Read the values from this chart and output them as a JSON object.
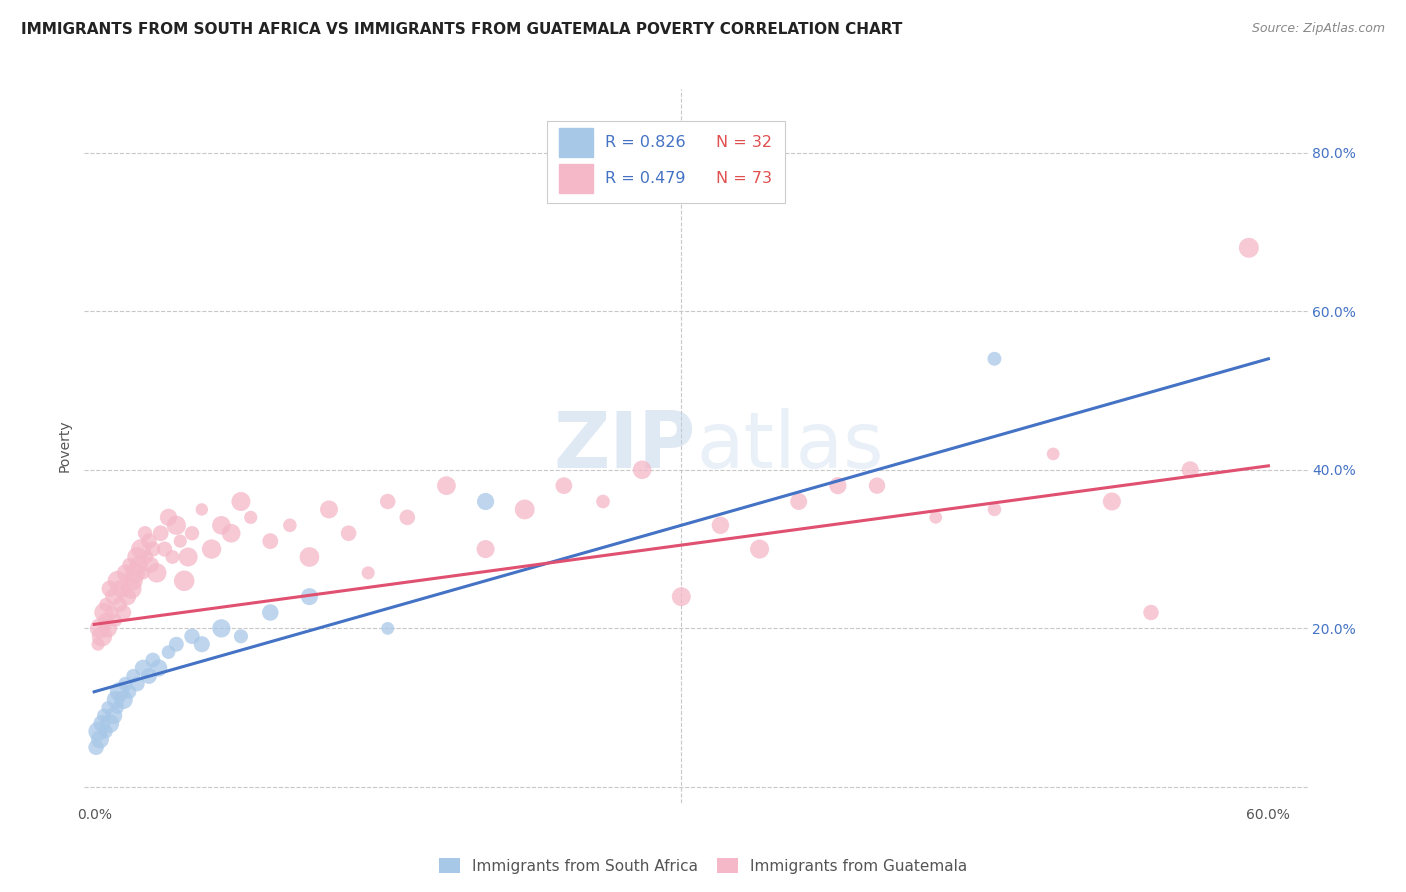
{
  "title": "IMMIGRANTS FROM SOUTH AFRICA VS IMMIGRANTS FROM GUATEMALA POVERTY CORRELATION CHART",
  "source": "Source: ZipAtlas.com",
  "ylabel": "Poverty",
  "xlim": [
    -0.005,
    0.62
  ],
  "ylim": [
    -0.02,
    0.88
  ],
  "xtick_positions": [
    0.0,
    0.3,
    0.6
  ],
  "xticklabels_show": {
    "0.0": "0.0%",
    "0.60": "60.0%"
  },
  "yticks": [
    0.0,
    0.2,
    0.4,
    0.6,
    0.8
  ],
  "yticklabels": [
    "",
    "20.0%",
    "40.0%",
    "60.0%",
    "80.0%"
  ],
  "legend_r1": "R = 0.826",
  "legend_n1": "N = 32",
  "legend_r2": "R = 0.479",
  "legend_n2": "N = 73",
  "color_blue": "#a8c8e8",
  "color_blue_fill": "#a8c8e8",
  "color_pink": "#f4b8c8",
  "color_pink_fill": "#f4b8c8",
  "line_color_blue": "#4472c4",
  "line_color_pink": "#e05070",
  "legend_label1": "Immigrants from South Africa",
  "legend_label2": "Immigrants from Guatemala",
  "background_color": "#ffffff",
  "grid_color": "#c8c8c8",
  "ytick_label_color": "#4472c4",
  "blue_line_x": [
    0.0,
    0.6
  ],
  "blue_line_y": [
    0.12,
    0.54
  ],
  "pink_line_x": [
    0.0,
    0.6
  ],
  "pink_line_y": [
    0.205,
    0.405
  ],
  "south_africa_x": [
    0.001,
    0.002,
    0.003,
    0.004,
    0.005,
    0.006,
    0.007,
    0.008,
    0.01,
    0.011,
    0.012,
    0.013,
    0.015,
    0.016,
    0.018,
    0.02,
    0.022,
    0.025,
    0.028,
    0.03,
    0.033,
    0.038,
    0.042,
    0.05,
    0.055,
    0.065,
    0.075,
    0.09,
    0.11,
    0.15,
    0.2,
    0.46
  ],
  "south_africa_y": [
    0.05,
    0.07,
    0.06,
    0.08,
    0.09,
    0.07,
    0.1,
    0.08,
    0.09,
    0.11,
    0.1,
    0.12,
    0.11,
    0.13,
    0.12,
    0.14,
    0.13,
    0.15,
    0.14,
    0.16,
    0.15,
    0.17,
    0.18,
    0.19,
    0.18,
    0.2,
    0.19,
    0.22,
    0.24,
    0.2,
    0.36,
    0.54
  ],
  "guatemala_x": [
    0.002,
    0.003,
    0.004,
    0.005,
    0.006,
    0.006,
    0.007,
    0.008,
    0.009,
    0.01,
    0.011,
    0.012,
    0.013,
    0.014,
    0.015,
    0.016,
    0.017,
    0.018,
    0.019,
    0.02,
    0.021,
    0.022,
    0.023,
    0.024,
    0.025,
    0.026,
    0.027,
    0.028,
    0.029,
    0.03,
    0.032,
    0.034,
    0.036,
    0.038,
    0.04,
    0.042,
    0.044,
    0.046,
    0.048,
    0.05,
    0.055,
    0.06,
    0.065,
    0.07,
    0.075,
    0.08,
    0.09,
    0.1,
    0.11,
    0.12,
    0.13,
    0.14,
    0.15,
    0.16,
    0.18,
    0.2,
    0.22,
    0.24,
    0.26,
    0.28,
    0.3,
    0.32,
    0.34,
    0.36,
    0.38,
    0.4,
    0.43,
    0.46,
    0.49,
    0.52,
    0.54,
    0.56,
    0.59
  ],
  "guatemala_y": [
    0.18,
    0.2,
    0.19,
    0.22,
    0.21,
    0.23,
    0.2,
    0.25,
    0.22,
    0.24,
    0.21,
    0.26,
    0.23,
    0.25,
    0.22,
    0.27,
    0.24,
    0.28,
    0.25,
    0.26,
    0.27,
    0.29,
    0.28,
    0.3,
    0.27,
    0.32,
    0.29,
    0.31,
    0.28,
    0.3,
    0.27,
    0.32,
    0.3,
    0.34,
    0.29,
    0.33,
    0.31,
    0.26,
    0.29,
    0.32,
    0.35,
    0.3,
    0.33,
    0.32,
    0.36,
    0.34,
    0.31,
    0.33,
    0.29,
    0.35,
    0.32,
    0.27,
    0.36,
    0.34,
    0.38,
    0.3,
    0.35,
    0.38,
    0.36,
    0.4,
    0.24,
    0.33,
    0.3,
    0.36,
    0.38,
    0.38,
    0.34,
    0.35,
    0.42,
    0.36,
    0.22,
    0.4,
    0.68
  ]
}
